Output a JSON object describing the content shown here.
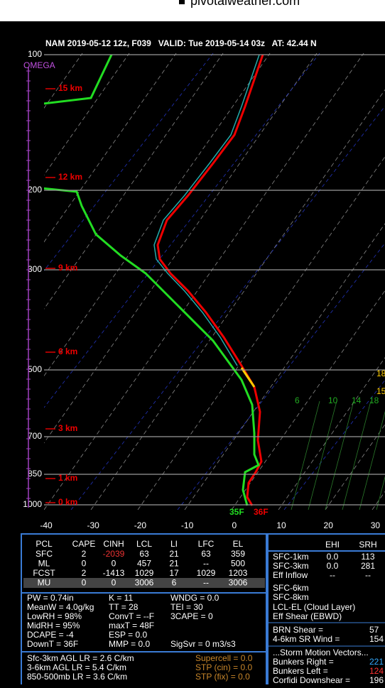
{
  "site": "pivotalweather.com",
  "header": "NAM 2019-05-12 12z, F039   VALID: Tue 2019-05-14 03z   AT: 42.44 N",
  "plot": {
    "omega": "OMEGA",
    "pressure_labels": [
      "100",
      "200",
      "300",
      "500",
      "700",
      "850",
      "1000"
    ],
    "height_labels": [
      "15 km",
      "12 km",
      "9 km",
      "6 km",
      "3 km",
      "1 km",
      "0 km"
    ],
    "temp_labels": [
      "-40",
      "-30",
      "-20",
      "-10",
      "0",
      "10",
      "20",
      "30"
    ],
    "surface_dewpoint": "35F",
    "surface_temp": "36F",
    "right_labels": [
      "18",
      "15"
    ],
    "hodo_labels": [
      "6",
      "10",
      "14",
      "18"
    ]
  },
  "parcel_table": {
    "header": [
      "PCL",
      "CAPE",
      "CINH",
      "LCL",
      "LI",
      "LFC",
      "EL"
    ],
    "rows": [
      [
        "SFC",
        "2",
        "-2039",
        "63",
        "21",
        "63",
        "359"
      ],
      [
        "ML",
        "0",
        "0",
        "457",
        "21",
        "--",
        "500"
      ],
      [
        "FCST",
        "2",
        "-1413",
        "1029",
        "17",
        "1029",
        "1203"
      ],
      [
        "MU",
        "0",
        "0",
        "3006",
        "6",
        "--",
        "3006"
      ]
    ]
  },
  "indices": [
    [
      "PW = 0.74in",
      "K = 11",
      "WNDG = 0.0"
    ],
    [
      "MeanW = 4.0g/kg",
      "TT = 28",
      "TEI = 30"
    ],
    [
      "LowRH = 98%",
      "ConvT = --F",
      "3CAPE = 0"
    ],
    [
      "MidRH = 95%",
      "maxT = 48F"
    ],
    [
      "DCAPE = -4",
      "ESP = 0.0"
    ],
    [
      "DownT = 36F",
      "MMP = 0.0",
      "SigSvr = 0 m3/s3"
    ]
  ],
  "lapse_rates": [
    [
      "Sfc-3km AGL LR = 2.6 C/km",
      "Supercell = 0.0"
    ],
    [
      "3-6km AGL LR = 5.4 C/km",
      "STP (cin) = 0.0"
    ],
    [
      "850-500mb LR = 3.6 C/km",
      "STP (fix) = 0.0"
    ]
  ],
  "kinematics": {
    "header": [
      "EHI",
      "SRH"
    ],
    "rows": [
      [
        "SFC-1km",
        "0.0",
        "113"
      ],
      [
        "SFC-3km",
        "0.0",
        "281"
      ],
      [
        "Eff Inflow",
        "--",
        "--"
      ],
      [
        "SFC-6km"
      ],
      [
        "SFC-8km"
      ],
      [
        "LCL-EL (Cloud Layer)"
      ],
      [
        "Eff Shear (EBWD)"
      ]
    ],
    "shear": [
      [
        "BRN Shear =",
        "57"
      ],
      [
        "4-6km SR Wind =",
        "154"
      ]
    ],
    "storm_motion_title": "...Storm Motion Vectors...",
    "storm_motion": [
      [
        "Bunkers Right =",
        "221"
      ],
      [
        "Bunkers Left =",
        "124"
      ],
      [
        "Corfidi Downshear =",
        "196"
      ]
    ]
  }
}
